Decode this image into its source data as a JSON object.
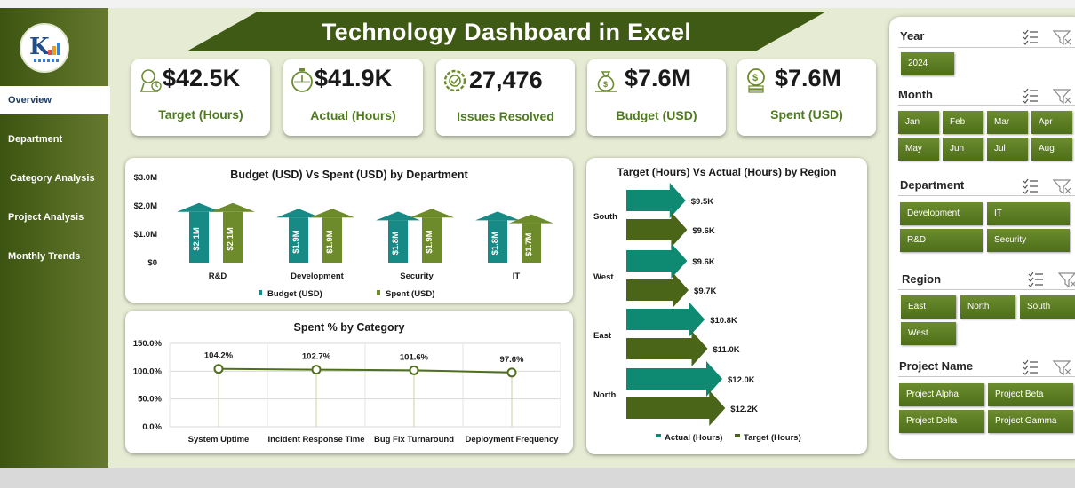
{
  "title": "Technology Dashboard in Excel",
  "nav": {
    "items": [
      {
        "label": "Overview",
        "active": true
      },
      {
        "label": "Department",
        "active": false
      },
      {
        "label": "Category Analysis",
        "active": false
      },
      {
        "label": "Project Analysis",
        "active": false
      },
      {
        "label": "Monthly Trends",
        "active": false
      }
    ]
  },
  "kpis": [
    {
      "value": "$42.5K",
      "label": "Target (Hours)",
      "icon": "target-hours-icon"
    },
    {
      "value": "$41.9K",
      "label": "Actual (Hours)",
      "icon": "stopwatch-icon"
    },
    {
      "value": "27,476",
      "label": "Issues Resolved",
      "icon": "gear-check-icon"
    },
    {
      "value": "$7.6M",
      "label": "Budget (USD)",
      "icon": "money-bag-icon"
    },
    {
      "value": "$7.6M",
      "label": "Spent (USD)",
      "icon": "coins-icon"
    }
  ],
  "colors": {
    "teal": "#10877f",
    "olive": "#5e7b1c",
    "dark_olive": "#3f5a14",
    "budget_arrow": "#178a86",
    "spent_arrow": "#6d8b2a",
    "actual_arrow": "#0e8a72",
    "target_arrow": "#4a6418"
  },
  "chart_data": [
    {
      "type": "bar",
      "title": "Budget (USD) Vs Spent (USD) by Department",
      "categories": [
        "R&D",
        "Development",
        "Security",
        "IT"
      ],
      "series": [
        {
          "name": "Budget (USD)",
          "values": [
            2.1,
            1.9,
            1.8,
            1.8
          ],
          "labels": [
            "$2.1M",
            "$1.9M",
            "$1.8M",
            "$1.8M"
          ]
        },
        {
          "name": "Spent (USD)",
          "values": [
            2.1,
            1.9,
            1.9,
            1.7
          ],
          "labels": [
            "$2.1M",
            "$1.9M",
            "$1.9M",
            "$1.7M"
          ]
        }
      ],
      "unit": "$M",
      "y_ticks": [
        "$0",
        "$1.0M",
        "$2.0M",
        "$3.0M"
      ],
      "ylim": [
        0,
        3
      ],
      "legend": "bottom"
    },
    {
      "type": "line",
      "title": "Spent % by  Category",
      "categories": [
        "System Uptime",
        "Incident Response Time",
        "Bug Fix Turnaround",
        "Deployment Frequency"
      ],
      "values": [
        104.2,
        102.7,
        101.6,
        97.6
      ],
      "labels": [
        "104.2%",
        "102.7%",
        "101.6%",
        "97.6%"
      ],
      "y_ticks": [
        "0.0%",
        "50.0%",
        "100.0%",
        "150.0%"
      ],
      "ylim": [
        0,
        150
      ]
    },
    {
      "type": "bar",
      "orientation": "horizontal",
      "title": "Target (Hours) Vs Actual (Hours) by Region",
      "categories": [
        "South",
        "West",
        "East",
        "North"
      ],
      "series": [
        {
          "name": "Actual (Hours)",
          "values": [
            9.5,
            9.6,
            10.8,
            12.0
          ],
          "labels": [
            "$9.5K",
            "$9.6K",
            "$10.8K",
            "$12.0K"
          ]
        },
        {
          "name": "Target (Hours)",
          "values": [
            9.6,
            9.7,
            11.0,
            12.2
          ],
          "labels": [
            "$9.6K",
            "$9.7K",
            "$11.0K",
            "$12.2K"
          ]
        }
      ],
      "unit": "K",
      "legend": "bottom"
    }
  ],
  "slicers": [
    {
      "title": "Year",
      "items": [
        "2024"
      ]
    },
    {
      "title": "Month",
      "items": [
        "Jan",
        "Feb",
        "Mar",
        "Apr",
        "May",
        "Jun",
        "Jul",
        "Aug"
      ]
    },
    {
      "title": "Department",
      "items": [
        "Development",
        "IT",
        "R&D",
        "Security"
      ]
    },
    {
      "title": "Region",
      "items": [
        "East",
        "North",
        "South",
        "West"
      ]
    },
    {
      "title": "Project Name",
      "items": [
        "Project Alpha",
        "Project Beta",
        "Project Delta",
        "Project Gamma"
      ]
    }
  ]
}
